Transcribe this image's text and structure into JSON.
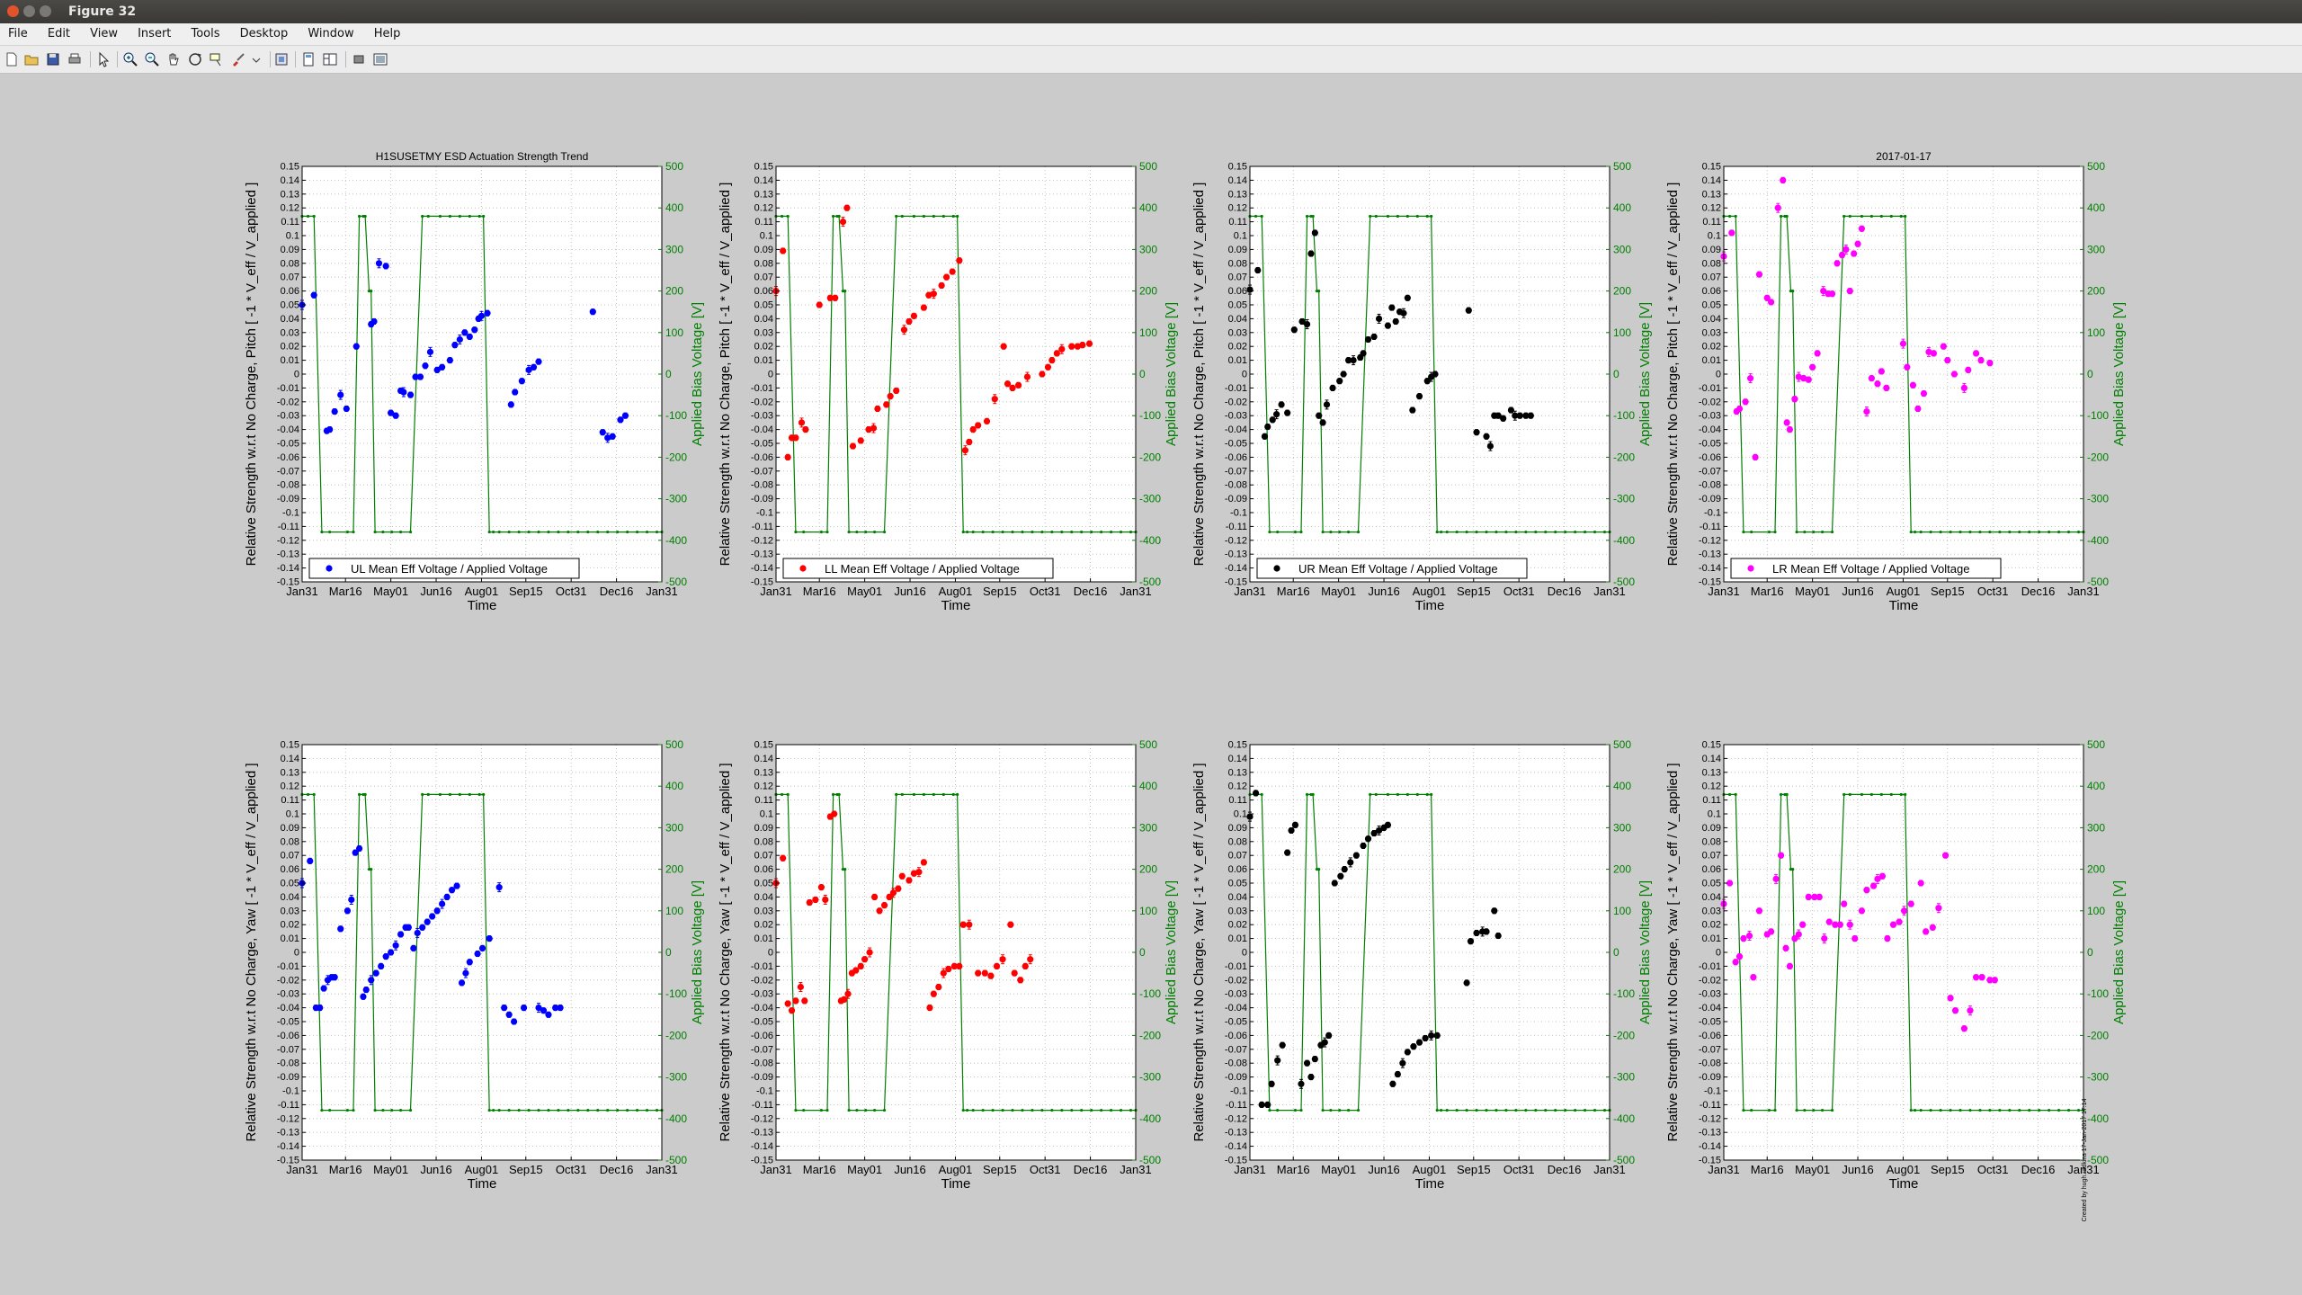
{
  "window": {
    "title": "Figure 32"
  },
  "menu": [
    "File",
    "Edit",
    "View",
    "Insert",
    "Tools",
    "Desktop",
    "Window",
    "Help"
  ],
  "toolbar_icons": [
    "new-figure-icon",
    "open-file-icon",
    "save-icon",
    "print-icon",
    "edit-plot-icon",
    "zoom-in-icon",
    "zoom-out-icon",
    "pan-icon",
    "rotate-3d-icon",
    "data-cursor-icon",
    "brush-icon",
    "link-plot-icon",
    "insert-colorbar-icon",
    "insert-legend-icon",
    "hide-plot-tools-icon",
    "show-plot-tools-icon"
  ],
  "colors": {
    "green": "#008000",
    "blue": "#0000ff",
    "red": "#ff0000",
    "black": "#000000",
    "magenta": "#ff00ff"
  },
  "chart_common": {
    "x_ticks": [
      "Jan31",
      "Mar16",
      "May01",
      "Jun16",
      "Aug01",
      "Sep15",
      "Oct31",
      "Dec16",
      "Jan31"
    ],
    "xlabel": "Time",
    "ylim": [
      -0.15,
      0.15
    ],
    "y_ticks": [
      0.15,
      0.14,
      0.13,
      0.12,
      0.11,
      0.1,
      0.09,
      0.08,
      0.07,
      0.06,
      0.05,
      0.04,
      0.03,
      0.02,
      0.01,
      0,
      -0.01,
      -0.02,
      -0.03,
      -0.04,
      -0.05,
      -0.06,
      -0.07,
      -0.08,
      -0.09,
      -0.1,
      -0.11,
      -0.12,
      -0.13,
      -0.14,
      -0.15
    ],
    "y2_ticks": [
      500,
      400,
      300,
      200,
      100,
      0,
      -100,
      -200,
      -300,
      -400,
      -500
    ],
    "y2label": "Applied Bias Voltage [V]",
    "y2lim": [
      -500,
      500
    ],
    "grid": "dotted"
  },
  "bias_voltage": {
    "x": [
      0,
      6,
      12,
      20,
      28,
      46,
      52,
      58,
      62,
      64,
      68,
      70,
      74,
      82,
      91,
      100,
      110,
      122,
      128,
      140,
      150,
      160,
      170,
      180,
      184,
      190,
      194,
      200,
      210,
      220,
      230,
      240,
      250,
      260,
      270,
      280,
      290,
      300,
      310,
      320,
      330,
      340,
      350,
      360,
      365
    ],
    "y": [
      380,
      380,
      380,
      -380,
      -380,
      -380,
      -380,
      380,
      380,
      380,
      200,
      200,
      -380,
      -380,
      -380,
      -380,
      -380,
      380,
      380,
      380,
      380,
      380,
      380,
      380,
      380,
      -380,
      -380,
      -380,
      -380,
      -380,
      -380,
      -380,
      -380,
      -380,
      -380,
      -380,
      -380,
      -380,
      -380,
      -380,
      -380,
      -380,
      -380,
      -380,
      -380
    ]
  },
  "side_note": "Created by hugh.radkins 17-Jan-2017 17:14",
  "chart_data": [
    {
      "type": "scatter",
      "title": "H1SUSETMY ESD Actuation Strength Trend",
      "ylabel": "Relative Strength w.r.t No Charge, Pitch [ -1 * V_eff / V_applied ]",
      "legend": "UL Mean Eff Voltage / Applied Voltage",
      "color": "#0000ff",
      "x": [
        0,
        12,
        25,
        28,
        33,
        39,
        45,
        55,
        70,
        73,
        78,
        85,
        90,
        95,
        100,
        103,
        110,
        115,
        120,
        125,
        130,
        137,
        142,
        150,
        155,
        160,
        165,
        170,
        175,
        179,
        182,
        188,
        212,
        216,
        223,
        230,
        235,
        240,
        295,
        305,
        310,
        315,
        323,
        328
      ],
      "y": [
        0.05,
        0.057,
        -0.041,
        -0.04,
        -0.027,
        -0.015,
        -0.025,
        0.02,
        0.036,
        0.038,
        0.08,
        0.078,
        -0.028,
        -0.03,
        -0.012,
        -0.013,
        -0.015,
        -0.002,
        -0.002,
        0.006,
        0.016,
        0.003,
        0.005,
        0.01,
        0.021,
        0.025,
        0.03,
        0.027,
        0.032,
        0.04,
        0.042,
        0.044,
        -0.022,
        -0.013,
        -0.005,
        0.003,
        0.005,
        0.009,
        0.045,
        -0.042,
        -0.046,
        -0.045,
        -0.033,
        -0.03
      ]
    },
    {
      "type": "scatter",
      "title": "",
      "ylabel": "Relative Strength w.r.t No Charge, Pitch [ -1 * V_eff / V_applied ]",
      "legend": "LL Mean Eff Voltage / Applied Voltage",
      "color": "#ff0000",
      "x": [
        0,
        7,
        12,
        16,
        20,
        26,
        30,
        44,
        55,
        60,
        68,
        72,
        78,
        86,
        94,
        99,
        103,
        112,
        116,
        122,
        130,
        135,
        140,
        150,
        155,
        160,
        168,
        173,
        179,
        186,
        192,
        196,
        200,
        205,
        214,
        222,
        231,
        235,
        240,
        246,
        255,
        270,
        276,
        280,
        285,
        290,
        300,
        306,
        311,
        318
      ],
      "y": [
        0.06,
        0.089,
        -0.06,
        -0.046,
        -0.046,
        -0.035,
        -0.04,
        0.05,
        0.055,
        0.055,
        0.11,
        0.12,
        -0.052,
        -0.048,
        -0.04,
        -0.039,
        -0.025,
        -0.022,
        -0.016,
        -0.012,
        0.032,
        0.038,
        0.042,
        0.048,
        0.057,
        0.058,
        0.064,
        0.07,
        0.074,
        0.082,
        -0.055,
        -0.049,
        -0.04,
        -0.037,
        -0.034,
        -0.018,
        0.02,
        -0.007,
        -0.01,
        -0.008,
        -0.002,
        0.0,
        0.005,
        0.01,
        0.015,
        0.018,
        0.02,
        0.02,
        0.021,
        0.022
      ]
    },
    {
      "type": "scatter",
      "title": "",
      "ylabel": "Relative Strength w.r.t No Charge, Pitch [ -1 * V_eff / V_applied ]",
      "legend": "UR Mean Eff Voltage / Applied Voltage",
      "color": "#000000",
      "x": [
        0,
        8,
        15,
        18,
        23,
        27,
        32,
        38,
        45,
        53,
        58,
        62,
        66,
        70,
        74,
        78,
        84,
        91,
        95,
        100,
        105,
        112,
        115,
        120,
        126,
        131,
        140,
        144,
        148,
        152,
        156,
        160,
        165,
        172,
        180,
        184,
        188,
        222,
        230,
        240,
        244,
        248,
        252,
        257,
        265,
        269,
        274,
        280,
        285
      ],
      "y": [
        0.061,
        0.075,
        -0.045,
        -0.038,
        -0.033,
        -0.029,
        -0.022,
        -0.028,
        0.032,
        0.038,
        0.036,
        0.087,
        0.102,
        -0.03,
        -0.035,
        -0.022,
        -0.01,
        -0.005,
        0.0,
        0.01,
        0.01,
        0.012,
        0.015,
        0.025,
        0.027,
        0.04,
        0.035,
        0.048,
        0.038,
        0.045,
        0.044,
        0.055,
        -0.026,
        -0.016,
        -0.005,
        -0.002,
        0.0,
        0.046,
        -0.042,
        -0.045,
        -0.052,
        -0.03,
        -0.03,
        -0.032,
        -0.026,
        -0.03,
        -0.03,
        -0.03,
        -0.03
      ]
    },
    {
      "type": "scatter",
      "title": "2017-01-17",
      "ylabel": "Relative Strength w.r.t No Charge, Pitch [ -1 * V_eff / V_applied ]",
      "legend": "LR Mean Eff Voltage / Applied Voltage",
      "color": "#ff00ff",
      "x": [
        0,
        8,
        13,
        16,
        22,
        27,
        32,
        36,
        44,
        48,
        55,
        60,
        64,
        67,
        72,
        76,
        81,
        86,
        90,
        95,
        101,
        106,
        110,
        115,
        120,
        124,
        128,
        132,
        136,
        140,
        145,
        150,
        156,
        160,
        165,
        182,
        186,
        192,
        197,
        203,
        208,
        213,
        223,
        227,
        234,
        244,
        248,
        256,
        261,
        270
      ],
      "y": [
        0.085,
        0.102,
        -0.027,
        -0.025,
        -0.02,
        -0.003,
        -0.06,
        0.072,
        0.055,
        0.052,
        0.12,
        0.14,
        -0.035,
        -0.04,
        -0.018,
        -0.002,
        -0.003,
        -0.004,
        0.005,
        0.015,
        0.06,
        0.058,
        0.058,
        0.08,
        0.086,
        0.09,
        0.06,
        0.087,
        0.094,
        0.105,
        -0.027,
        -0.003,
        -0.007,
        0.002,
        -0.01,
        0.022,
        0.005,
        -0.008,
        -0.025,
        -0.014,
        0.016,
        0.015,
        0.02,
        0.01,
        0.0,
        -0.01,
        0.003,
        0.015,
        0.01,
        0.008
      ]
    },
    {
      "type": "scatter",
      "title": "",
      "ylabel": "Relative Strength w.r.t No Charge, Yaw [ -1 * V_eff / V_applied ]",
      "legend": "",
      "color": "#0000ff",
      "x": [
        0,
        8,
        14,
        18,
        22,
        26,
        30,
        33,
        39,
        46,
        50,
        54,
        58,
        62,
        65,
        70,
        75,
        80,
        85,
        90,
        95,
        100,
        105,
        108,
        113,
        117,
        122,
        127,
        132,
        137,
        142,
        147,
        152,
        157,
        162,
        166,
        170,
        178,
        183,
        190,
        200,
        205,
        210,
        215,
        225,
        240,
        245,
        250,
        257,
        262
      ],
      "y": [
        0.05,
        0.066,
        -0.04,
        -0.04,
        -0.026,
        -0.02,
        -0.018,
        -0.018,
        0.017,
        0.03,
        0.038,
        0.072,
        0.075,
        -0.032,
        -0.027,
        -0.02,
        -0.015,
        -0.01,
        -0.003,
        0.0,
        0.005,
        0.013,
        0.018,
        0.018,
        0.003,
        0.014,
        0.018,
        0.022,
        0.026,
        0.03,
        0.035,
        0.04,
        0.045,
        0.048,
        -0.022,
        -0.015,
        -0.007,
        -0.001,
        0.003,
        0.01,
        0.047,
        -0.04,
        -0.045,
        -0.05,
        -0.04,
        -0.04,
        -0.042,
        -0.045,
        -0.04,
        -0.04
      ]
    },
    {
      "type": "scatter",
      "title": "",
      "ylabel": "Relative Strength w.r.t No Charge, Yaw [ -1 * V_eff / V_applied ]",
      "legend": "",
      "color": "#ff0000",
      "x": [
        0,
        7,
        12,
        16,
        20,
        25,
        29,
        34,
        40,
        46,
        50,
        55,
        59,
        66,
        69,
        73,
        77,
        81,
        86,
        90,
        95,
        100,
        105,
        110,
        115,
        119,
        124,
        128,
        135,
        140,
        145,
        150,
        156,
        160,
        165,
        170,
        175,
        181,
        186,
        190,
        196,
        205,
        212,
        218,
        224,
        230,
        238,
        242,
        248,
        253,
        258
      ],
      "y": [
        0.05,
        0.068,
        -0.037,
        -0.042,
        -0.035,
        -0.025,
        -0.035,
        0.036,
        0.038,
        0.047,
        0.038,
        0.098,
        0.1,
        -0.035,
        -0.034,
        -0.03,
        -0.015,
        -0.013,
        -0.01,
        -0.005,
        0.0,
        0.04,
        0.03,
        0.034,
        0.04,
        0.043,
        0.046,
        0.055,
        0.052,
        0.057,
        0.058,
        0.065,
        -0.04,
        -0.03,
        -0.025,
        -0.015,
        -0.012,
        -0.01,
        -0.01,
        0.02,
        0.02,
        -0.015,
        -0.015,
        -0.017,
        -0.01,
        -0.005,
        0.02,
        -0.015,
        -0.02,
        -0.01,
        -0.005
      ]
    },
    {
      "type": "scatter",
      "title": "",
      "ylabel": "Relative Strength w.r.t No Charge, Yaw [ -1 * V_eff / V_applied ]",
      "legend": "",
      "color": "#000000",
      "x": [
        0,
        6,
        12,
        18,
        22,
        28,
        33,
        38,
        42,
        46,
        52,
        58,
        62,
        66,
        72,
        76,
        80,
        86,
        92,
        96,
        102,
        108,
        115,
        120,
        126,
        131,
        136,
        140,
        145,
        150,
        155,
        160,
        166,
        172,
        178,
        184,
        190,
        220,
        224,
        230,
        236,
        240,
        248,
        252
      ],
      "y": [
        0.098,
        0.115,
        -0.11,
        -0.11,
        -0.095,
        -0.078,
        -0.067,
        0.072,
        0.088,
        0.092,
        -0.095,
        -0.08,
        -0.09,
        -0.077,
        -0.067,
        -0.065,
        -0.06,
        0.05,
        0.055,
        0.06,
        0.065,
        0.07,
        0.077,
        0.082,
        0.086,
        0.088,
        0.09,
        0.092,
        -0.095,
        -0.088,
        -0.08,
        -0.072,
        -0.068,
        -0.065,
        -0.062,
        -0.06,
        -0.06,
        -0.022,
        0.008,
        0.014,
        0.015,
        0.015,
        0.03,
        0.012
      ]
    },
    {
      "type": "scatter",
      "title": "",
      "ylabel": "Relative Strength w.r.t No Charge, Yaw [ -1 * V_eff / V_applied ]",
      "legend": "",
      "color": "#ff00ff",
      "x": [
        0,
        6,
        12,
        16,
        20,
        26,
        30,
        36,
        44,
        48,
        53,
        58,
        63,
        67,
        72,
        76,
        80,
        86,
        92,
        97,
        102,
        107,
        113,
        118,
        122,
        128,
        133,
        140,
        145,
        152,
        156,
        161,
        166,
        172,
        178,
        183,
        190,
        200,
        205,
        212,
        218,
        225,
        230,
        235,
        244,
        250,
        256,
        262,
        270,
        275
      ],
      "y": [
        0.035,
        0.05,
        -0.007,
        -0.003,
        0.01,
        0.012,
        -0.018,
        0.03,
        0.013,
        0.015,
        0.053,
        0.07,
        0.003,
        -0.01,
        0.01,
        0.013,
        0.02,
        0.04,
        0.04,
        0.04,
        0.01,
        0.022,
        0.02,
        0.02,
        0.035,
        0.02,
        0.01,
        0.03,
        0.045,
        0.048,
        0.053,
        0.055,
        0.01,
        0.02,
        0.022,
        0.03,
        0.035,
        0.05,
        0.015,
        0.018,
        0.032,
        0.07,
        -0.033,
        -0.042,
        -0.055,
        -0.042,
        -0.018,
        -0.018,
        -0.02,
        -0.02
      ]
    }
  ]
}
